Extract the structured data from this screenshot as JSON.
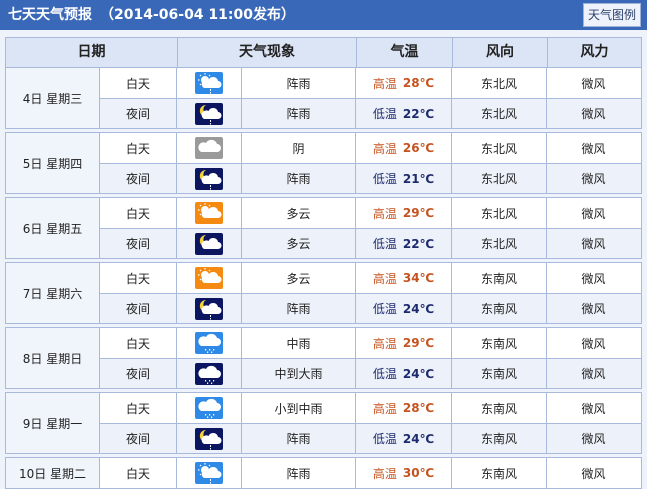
{
  "header": {
    "title": "七天天气预报",
    "published": "（2014-06-04 11:00发布）",
    "legend_button": "天气图例"
  },
  "columns": [
    "日期",
    "天气现象",
    "气温",
    "风向",
    "风力"
  ],
  "colors": {
    "topbar": "#3a68b8",
    "high_temp": "#c5531f",
    "low_temp": "#1c2a6e",
    "icon_day_blue": "#2e8ae6",
    "icon_night": "#0c1560",
    "icon_sunny": "#f58a12",
    "icon_overcast": "#9a9a9a"
  },
  "days": [
    {
      "date": "4日 星期三",
      "rows": [
        {
          "period": "白天",
          "icon": "shower-day",
          "weather": "阵雨",
          "temp_label": "高温",
          "temp": "28℃",
          "wind_dir": "东北风",
          "wind_force": "微风"
        },
        {
          "period": "夜间",
          "icon": "shower-night",
          "weather": "阵雨",
          "temp_label": "低温",
          "temp": "22℃",
          "wind_dir": "东北风",
          "wind_force": "微风"
        }
      ]
    },
    {
      "date": "5日 星期四",
      "rows": [
        {
          "period": "白天",
          "icon": "overcast",
          "weather": "阴",
          "temp_label": "高温",
          "temp": "26℃",
          "wind_dir": "东北风",
          "wind_force": "微风"
        },
        {
          "period": "夜间",
          "icon": "shower-night",
          "weather": "阵雨",
          "temp_label": "低温",
          "temp": "21℃",
          "wind_dir": "东北风",
          "wind_force": "微风"
        }
      ]
    },
    {
      "date": "6日 星期五",
      "rows": [
        {
          "period": "白天",
          "icon": "cloudy-day",
          "weather": "多云",
          "temp_label": "高温",
          "temp": "29℃",
          "wind_dir": "东北风",
          "wind_force": "微风"
        },
        {
          "period": "夜间",
          "icon": "cloudy-night",
          "weather": "多云",
          "temp_label": "低温",
          "temp": "22℃",
          "wind_dir": "东北风",
          "wind_force": "微风"
        }
      ]
    },
    {
      "date": "7日 星期六",
      "rows": [
        {
          "period": "白天",
          "icon": "cloudy-day",
          "weather": "多云",
          "temp_label": "高温",
          "temp": "34℃",
          "wind_dir": "东南风",
          "wind_force": "微风"
        },
        {
          "period": "夜间",
          "icon": "shower-night",
          "weather": "阵雨",
          "temp_label": "低温",
          "temp": "24℃",
          "wind_dir": "东南风",
          "wind_force": "微风"
        }
      ]
    },
    {
      "date": "8日 星期日",
      "rows": [
        {
          "period": "白天",
          "icon": "rain-day",
          "weather": "中雨",
          "temp_label": "高温",
          "temp": "29℃",
          "wind_dir": "东南风",
          "wind_force": "微风"
        },
        {
          "period": "夜间",
          "icon": "rain-night",
          "weather": "中到大雨",
          "temp_label": "低温",
          "temp": "24℃",
          "wind_dir": "东南风",
          "wind_force": "微风"
        }
      ]
    },
    {
      "date": "9日 星期一",
      "rows": [
        {
          "period": "白天",
          "icon": "rain-day",
          "weather": "小到中雨",
          "temp_label": "高温",
          "temp": "28℃",
          "wind_dir": "东南风",
          "wind_force": "微风"
        },
        {
          "period": "夜间",
          "icon": "shower-night",
          "weather": "阵雨",
          "temp_label": "低温",
          "temp": "24℃",
          "wind_dir": "东南风",
          "wind_force": "微风"
        }
      ]
    },
    {
      "date": "10日 星期二",
      "rows": [
        {
          "period": "白天",
          "icon": "shower-day",
          "weather": "阵雨",
          "temp_label": "高温",
          "temp": "30℃",
          "wind_dir": "东南风",
          "wind_force": "微风"
        }
      ]
    }
  ]
}
